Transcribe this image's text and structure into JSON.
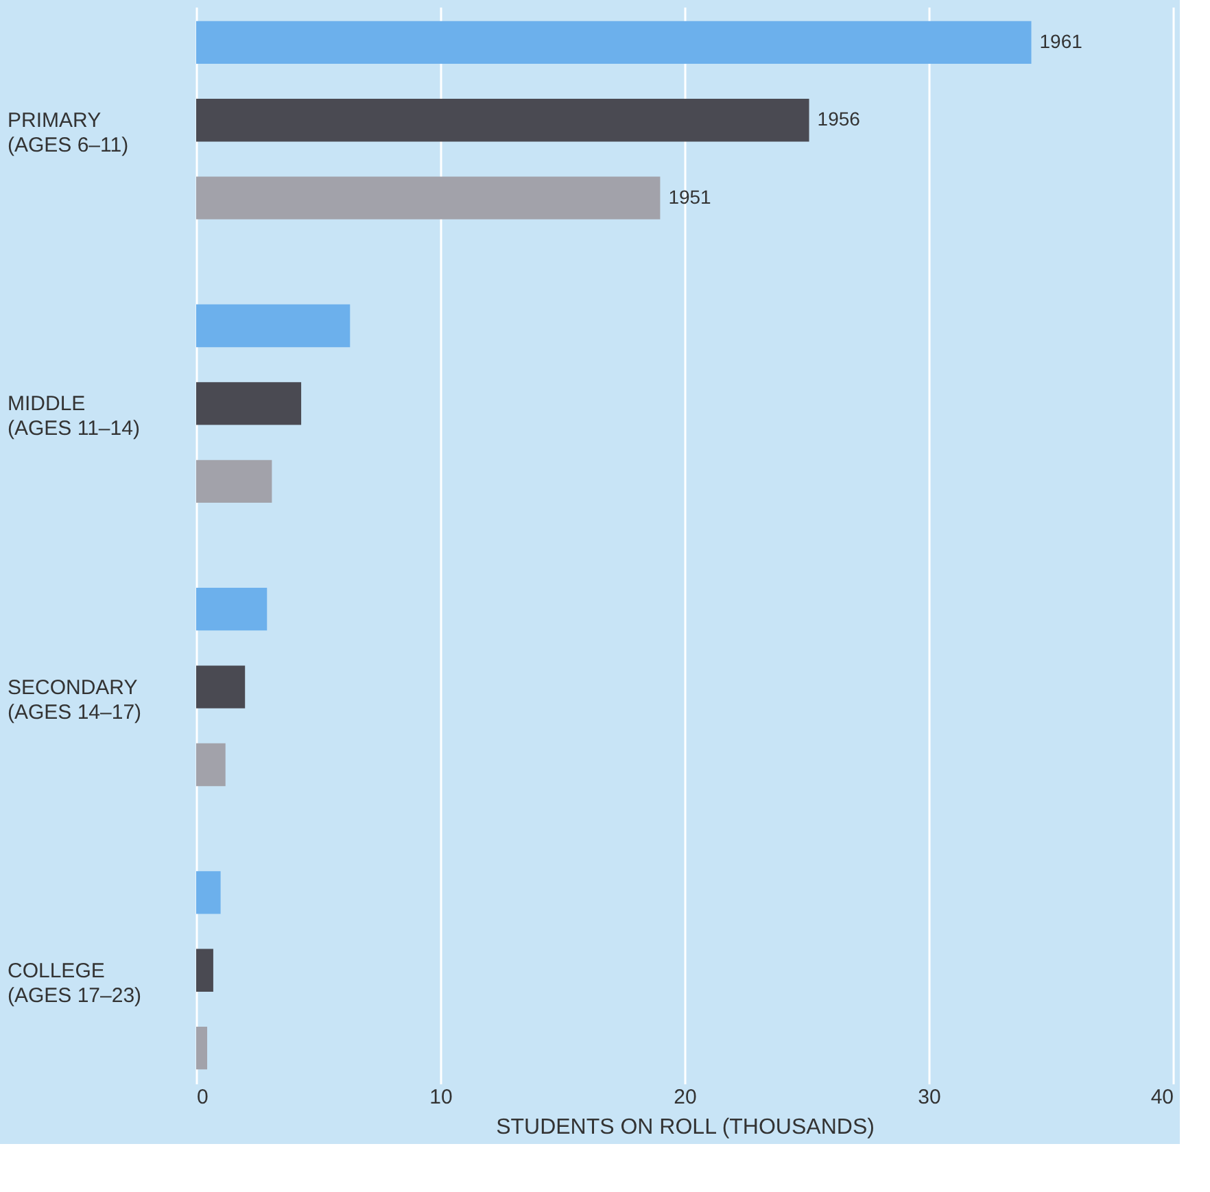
{
  "chart_data": {
    "type": "bar",
    "orientation": "horizontal",
    "xlabel": "STUDENTS ON ROLL (THOUSANDS)",
    "categories": [
      "PRIMARY\n(AGES 6–11)",
      "MIDDLE\n(AGES 11–14)",
      "SECONDARY\n(AGES 14–17)",
      "COLLEGE\n(AGES 17–23)"
    ],
    "series": [
      {
        "name": "1961",
        "color": "#6cb0ec",
        "values": [
          34.2,
          6.3,
          2.9,
          1.0
        ]
      },
      {
        "name": "1956",
        "color": "#4a4a52",
        "values": [
          25.1,
          4.3,
          2.0,
          0.7
        ]
      },
      {
        "name": "1951",
        "color": "#a2a2aa",
        "values": [
          19.0,
          3.1,
          1.2,
          0.45
        ]
      }
    ],
    "xlim": [
      0,
      40
    ],
    "xticks": [
      0,
      10,
      20,
      30,
      40
    ],
    "grid": "x",
    "legend": false
  }
}
